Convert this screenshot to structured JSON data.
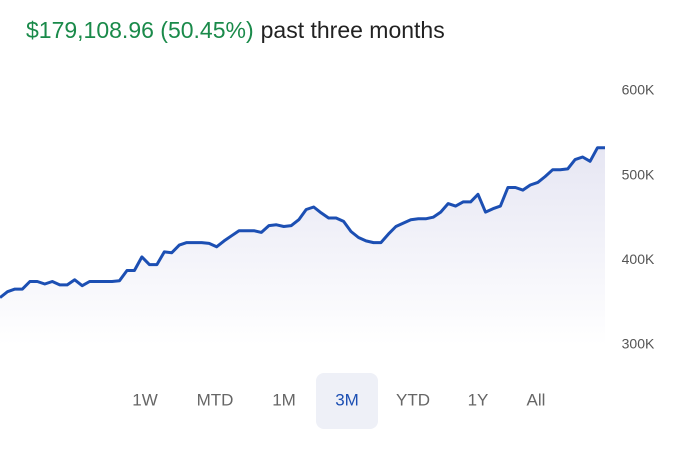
{
  "header": {
    "change": "$179,108.96 (50.45%)",
    "period": "past three months"
  },
  "chart_data": {
    "type": "line",
    "color": "#1c4fb3",
    "values": [
      356000,
      363000,
      366000,
      366000,
      375000,
      375000,
      372000,
      375000,
      371000,
      371000,
      377000,
      370000,
      375000,
      375000,
      375000,
      375000,
      376000,
      388000,
      388000,
      404000,
      395000,
      395000,
      410000,
      409000,
      418000,
      421000,
      421000,
      421000,
      420000,
      416000,
      423000,
      429000,
      435000,
      435000,
      435000,
      433000,
      441000,
      442000,
      440000,
      441000,
      448000,
      460000,
      463000,
      456000,
      450000,
      450000,
      446000,
      434000,
      427000,
      423000,
      421000,
      421000,
      431000,
      440000,
      444000,
      448000,
      449000,
      449000,
      451000,
      457000,
      467000,
      464000,
      469000,
      469000,
      478000,
      457000,
      461000,
      464000,
      486000,
      486000,
      483000,
      489000,
      492000,
      499000,
      507000,
      507000,
      508000,
      519000,
      522000,
      517000,
      533000,
      533000
    ],
    "ylim": [
      300000,
      600000
    ],
    "yticks": [
      {
        "value": 300000,
        "label": "300K"
      },
      {
        "value": 400000,
        "label": "400K"
      },
      {
        "value": 500000,
        "label": "500K"
      },
      {
        "value": 600000,
        "label": "600K"
      }
    ]
  },
  "tabs": {
    "items": [
      "1W",
      "MTD",
      "1M",
      "3M",
      "YTD",
      "1Y",
      "All"
    ],
    "selected": 3
  }
}
